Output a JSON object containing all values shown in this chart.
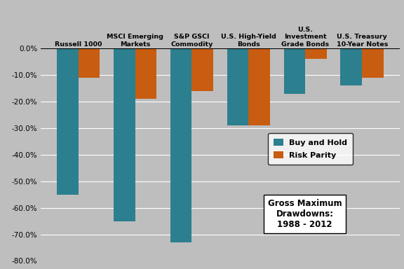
{
  "categories": [
    "Russell 1000",
    "MSCI Emerging\nMarkets",
    "S&P GSCI\nCommodity",
    "U.S. High-Yield\nBonds",
    "U.S.\nInvestment\nGrade Bonds",
    "U.S. Treasury\n10-Year Notes"
  ],
  "buy_and_hold": [
    -0.55,
    -0.65,
    -0.73,
    -0.29,
    -0.17,
    -0.14
  ],
  "risk_parity": [
    -0.11,
    -0.19,
    -0.16,
    -0.29,
    -0.04,
    -0.11
  ],
  "bh_color": "#2B7F8E",
  "rp_color": "#C85C10",
  "background_color": "#BEBEBE",
  "ylim": [
    -0.8,
    0.0
  ],
  "yticks": [
    0.0,
    -0.1,
    -0.2,
    -0.3,
    -0.4,
    -0.5,
    -0.6,
    -0.7,
    -0.8
  ],
  "legend_label_bh": "Buy and Hold",
  "legend_label_rp": "Risk Parity",
  "annotation_text": "Gross Maximum\nDrawdowns:\n1988 - 2012",
  "bar_width": 0.38
}
